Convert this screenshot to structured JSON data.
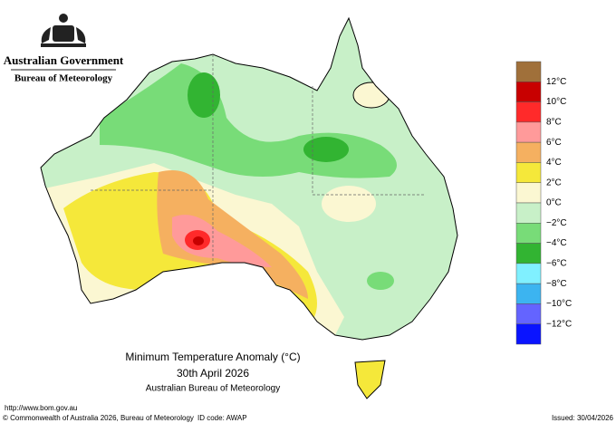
{
  "header": {
    "government": "Australian Government",
    "agency": "Bureau of Meteorology"
  },
  "map": {
    "title": "Minimum Temperature Anomaly (°C)",
    "date": "30th April 2026",
    "source": "Australian Bureau of Meteorology"
  },
  "legend": {
    "colors": [
      "#a0703a",
      "#c80000",
      "#ff2a2a",
      "#ff9a9a",
      "#f5b060",
      "#f5e83a",
      "#fbf7d2",
      "#c8f0c8",
      "#78dc78",
      "#32b432",
      "#80f0ff",
      "#3cb4f0",
      "#6464ff",
      "#0a14ff"
    ],
    "labels": [
      "12°C",
      "10°C",
      "8°C",
      "6°C",
      "4°C",
      "2°C",
      "0°C",
      "−2°C",
      "−4°C",
      "−6°C",
      "−8°C",
      "−10°C",
      "−12°C"
    ]
  },
  "footer": {
    "url": "http://www.bom.gov.au",
    "copyright": "© Commonwealth of Australia 2026, Bureau of Meteorology",
    "id_code": "ID code: AWAP",
    "issued": "Issued: 30/04/2026"
  }
}
